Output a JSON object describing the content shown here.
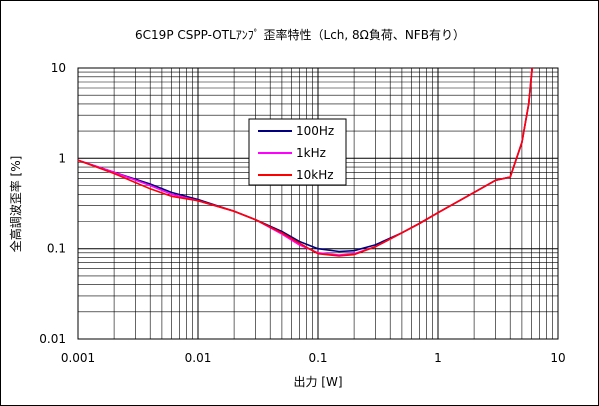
{
  "chart_data": {
    "type": "line",
    "title": "6C19P CSPP-OTLｱﾝﾌﾟ 歪率特性（Lch, 8Ω負荷、NFB有り）",
    "xlabel": "出力 [W]",
    "ylabel": "全高調波歪率 [%]",
    "xscale": "log",
    "yscale": "log",
    "xlim": [
      0.001,
      10
    ],
    "ylim": [
      0.01,
      10
    ],
    "x_ticks": [
      "0.001",
      "0.01",
      "0.1",
      "1",
      "10"
    ],
    "y_ticks": [
      "10",
      "1",
      "0.1",
      "0.01"
    ],
    "grid": true,
    "legend_position": "upper-center",
    "series": [
      {
        "name": "100Hz",
        "color": "#000080",
        "points": [
          [
            0.001,
            0.95
          ],
          [
            0.002,
            0.7
          ],
          [
            0.004,
            0.52
          ],
          [
            0.006,
            0.42
          ],
          [
            0.01,
            0.35
          ],
          [
            0.02,
            0.26
          ],
          [
            0.03,
            0.21
          ],
          [
            0.05,
            0.155
          ],
          [
            0.07,
            0.12
          ],
          [
            0.1,
            0.1
          ],
          [
            0.15,
            0.093
          ],
          [
            0.2,
            0.095
          ],
          [
            0.3,
            0.11
          ],
          [
            0.5,
            0.15
          ],
          [
            0.7,
            0.19
          ],
          [
            1,
            0.25
          ],
          [
            2,
            0.42
          ],
          [
            3,
            0.57
          ],
          [
            4,
            0.62
          ],
          [
            5,
            1.5
          ],
          [
            5.7,
            4
          ],
          [
            6.1,
            10
          ]
        ]
      },
      {
        "name": "1kHz",
        "color": "#ff00ff",
        "points": [
          [
            0.001,
            0.95
          ],
          [
            0.002,
            0.7
          ],
          [
            0.004,
            0.5
          ],
          [
            0.006,
            0.4
          ],
          [
            0.01,
            0.34
          ],
          [
            0.02,
            0.26
          ],
          [
            0.03,
            0.21
          ],
          [
            0.05,
            0.145
          ],
          [
            0.07,
            0.11
          ],
          [
            0.1,
            0.09
          ],
          [
            0.15,
            0.085
          ],
          [
            0.2,
            0.088
          ],
          [
            0.3,
            0.105
          ],
          [
            0.5,
            0.15
          ],
          [
            0.7,
            0.19
          ],
          [
            1,
            0.25
          ],
          [
            2,
            0.42
          ],
          [
            3,
            0.57
          ],
          [
            4,
            0.62
          ],
          [
            5,
            1.5
          ],
          [
            5.7,
            4
          ],
          [
            6.1,
            10
          ]
        ]
      },
      {
        "name": "10kHz",
        "color": "#ff0000",
        "points": [
          [
            0.001,
            0.95
          ],
          [
            0.002,
            0.68
          ],
          [
            0.004,
            0.46
          ],
          [
            0.006,
            0.38
          ],
          [
            0.01,
            0.34
          ],
          [
            0.02,
            0.26
          ],
          [
            0.03,
            0.21
          ],
          [
            0.05,
            0.15
          ],
          [
            0.07,
            0.115
          ],
          [
            0.1,
            0.088
          ],
          [
            0.15,
            0.083
          ],
          [
            0.2,
            0.086
          ],
          [
            0.3,
            0.105
          ],
          [
            0.5,
            0.15
          ],
          [
            0.7,
            0.19
          ],
          [
            1,
            0.25
          ],
          [
            2,
            0.42
          ],
          [
            3,
            0.57
          ],
          [
            4,
            0.62
          ],
          [
            5,
            1.5
          ],
          [
            5.7,
            4
          ],
          [
            6.1,
            10
          ]
        ]
      }
    ]
  }
}
